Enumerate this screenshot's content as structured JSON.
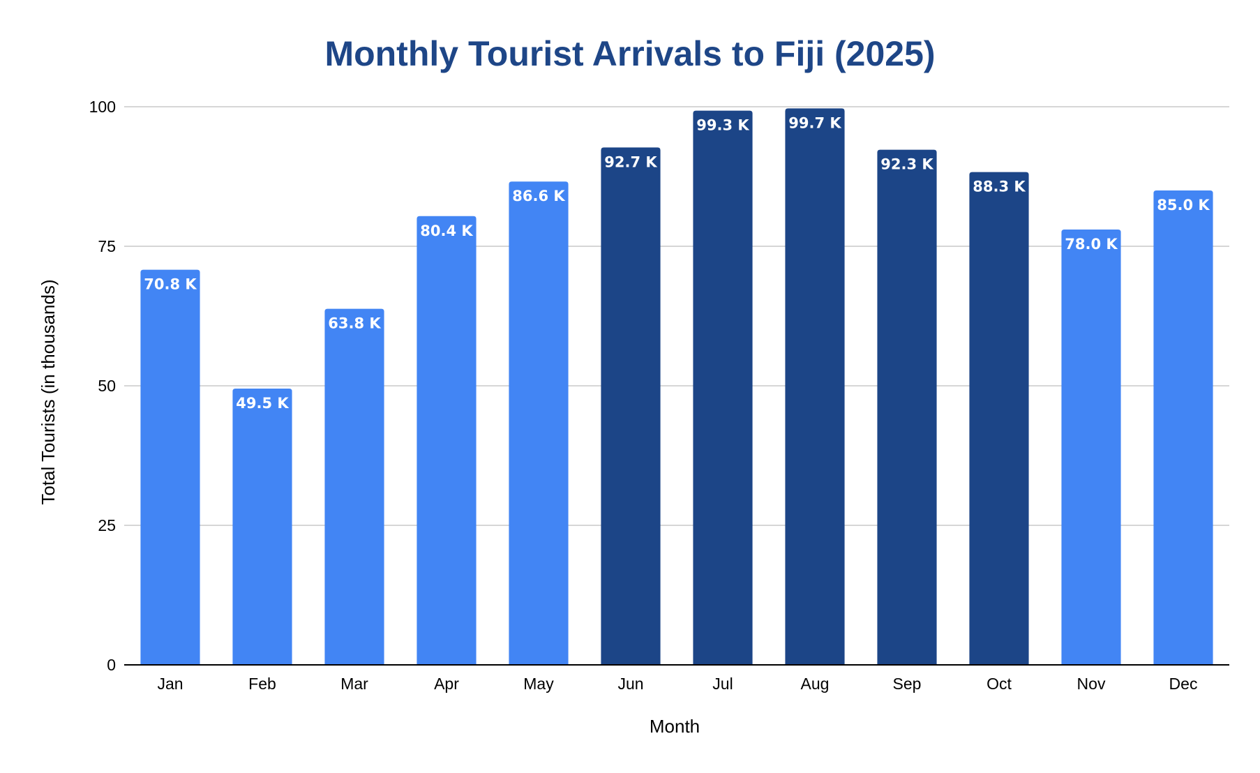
{
  "chart_data": {
    "type": "bar",
    "title": "Monthly Tourist Arrivals to Fiji (2025)",
    "xlabel": "Month",
    "ylabel": "Total Tourists (in thousands)",
    "categories": [
      "Jan",
      "Feb",
      "Mar",
      "Apr",
      "May",
      "Jun",
      "Jul",
      "Aug",
      "Sep",
      "Oct",
      "Nov",
      "Dec"
    ],
    "values": [
      70.8,
      49.5,
      63.8,
      80.4,
      86.6,
      92.7,
      99.3,
      99.7,
      92.3,
      88.3,
      78.0,
      85.0
    ],
    "data_labels": [
      "70.8 K",
      "49.5 K",
      "63.8 K",
      "80.4 K",
      "86.6 K",
      "92.7 K",
      "99.3 K",
      "99.7 K",
      "92.3 K",
      "88.3 K",
      "78.0 K",
      "85.0 K"
    ],
    "ylim": [
      0,
      100
    ],
    "yticks": [
      "0",
      "25",
      "50",
      "75",
      "100"
    ],
    "ytick_values": [
      0,
      25,
      50,
      75,
      100
    ],
    "grid": true,
    "legend": "none",
    "highlighted_categories": [
      "Jun",
      "Jul",
      "Aug",
      "Sep",
      "Oct"
    ],
    "colors": {
      "title": "#1e4687",
      "bar_default": "#4285f4",
      "bar_highlight": "#1c4587",
      "gridline": "#c8c8c8",
      "axis": "#000000",
      "data_label": "#ffffff"
    }
  }
}
